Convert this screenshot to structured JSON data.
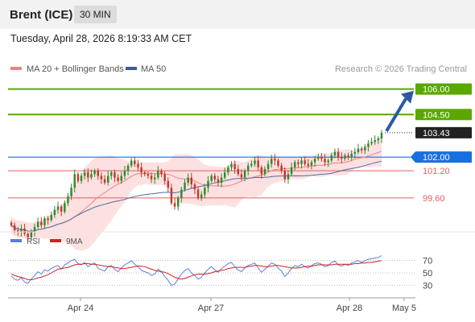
{
  "header": {
    "instrument": "Brent (ICE)",
    "timeframe": "30 MIN",
    "datetime": "Tuesday, April 28, 2026 8:19:33 AM CET"
  },
  "legend": {
    "ma20_bollinger": "MA 20 + Bollinger Bands",
    "ma50": "MA 50",
    "source": "Research © 2026 Trading Central"
  },
  "colors": {
    "candle_up": "#2f8a2f",
    "candle_down": "#c0392b",
    "ma20": "#f08080",
    "ma50": "#4a6fa5",
    "bollinger_fill": "#fde0e0",
    "target_green": "#5aa800",
    "pivot_blue": "#1a6fe0",
    "support_red": "#e06060",
    "rsi": "#5a7fd8",
    "rsi_ma": "#d62020",
    "arrow": "#2a5aa6"
  },
  "levels": [
    {
      "value": "106.00",
      "type": "target"
    },
    {
      "value": "104.50",
      "type": "target"
    },
    {
      "value": "103.43",
      "type": "last"
    },
    {
      "value": "102.00",
      "type": "pivot"
    },
    {
      "value": "101.20",
      "type": "support"
    },
    {
      "value": "99.60",
      "type": "support"
    }
  ],
  "rsi_panel": {
    "rsi_label": "RSI",
    "ma_label": "9MA",
    "ticks": [
      "70",
      "50",
      "30"
    ]
  },
  "x_axis": {
    "labels": [
      "Apr 24",
      "Apr 27",
      "Apr 28",
      "May 5"
    ]
  },
  "chart_data": {
    "type": "candlestick",
    "y_unit": "USD",
    "ylim": [
      97.8,
      106.5
    ],
    "rsi_ylim": [
      20,
      80
    ],
    "close_series": [
      98.0,
      97.7,
      97.6,
      97.8,
      97.5,
      97.3,
      97.6,
      97.9,
      98.2,
      98.0,
      98.4,
      98.3,
      98.6,
      98.9,
      99.1,
      98.8,
      99.3,
      99.7,
      100.2,
      101.0,
      100.6,
      100.9,
      101.1,
      100.8,
      101.0,
      101.2,
      100.9,
      100.7,
      100.5,
      100.9,
      101.1,
      100.8,
      100.6,
      100.9,
      101.2,
      101.5,
      101.8,
      101.6,
      101.4,
      101.1,
      101.0,
      100.9,
      100.7,
      100.8,
      101.2,
      101.0,
      100.6,
      100.2,
      99.3,
      99.1,
      99.6,
      100.1,
      100.5,
      100.8,
      100.4,
      100.1,
      99.6,
      99.8,
      100.2,
      100.6,
      100.9,
      100.7,
      100.5,
      100.8,
      101.1,
      101.4,
      101.6,
      101.3,
      101.0,
      100.8,
      101.2,
      101.5,
      101.6,
      101.8,
      101.4,
      101.0,
      101.3,
      101.6,
      101.9,
      101.8,
      101.5,
      101.2,
      100.7,
      101.0,
      101.4,
      101.7,
      101.6,
      101.8,
      101.6,
      101.5,
      101.7,
      101.9,
      102.0,
      101.9,
      101.7,
      101.8,
      102.1,
      102.3,
      102.0,
      101.9,
      102.1,
      102.0,
      102.2,
      102.3,
      102.5,
      102.4,
      102.6,
      102.8,
      102.9,
      103.0,
      103.1,
      103.43
    ],
    "rsi_series": [
      45,
      40,
      38,
      42,
      35,
      33,
      40,
      46,
      52,
      48,
      55,
      53,
      57,
      60,
      62,
      56,
      63,
      66,
      70,
      72,
      65,
      63,
      67,
      60,
      64,
      66,
      58,
      55,
      53,
      60,
      62,
      56,
      52,
      58,
      63,
      66,
      70,
      64,
      60,
      54,
      52,
      50,
      46,
      48,
      56,
      52,
      44,
      38,
      30,
      32,
      40,
      48,
      54,
      57,
      50,
      46,
      40,
      43,
      50,
      56,
      60,
      55,
      51,
      57,
      61,
      65,
      67,
      60,
      55,
      52,
      58,
      62,
      64,
      66,
      58,
      51,
      56,
      61,
      66,
      64,
      58,
      53,
      44,
      50,
      57,
      62,
      60,
      64,
      60,
      58,
      62,
      65,
      66,
      64,
      60,
      62,
      67,
      69,
      63,
      61,
      64,
      62,
      66,
      68,
      70,
      67,
      70,
      72,
      73,
      74,
      75,
      78
    ],
    "rsi_ma_series": [
      48,
      46,
      44,
      43,
      41,
      39,
      39,
      40,
      42,
      43,
      45,
      47,
      50,
      53,
      56,
      57,
      58,
      59,
      61,
      63,
      64,
      64,
      65,
      65,
      64,
      64,
      63,
      62,
      61,
      60,
      60,
      59,
      58,
      57,
      57,
      58,
      59,
      60,
      61,
      61,
      60,
      58,
      56,
      54,
      53,
      52,
      51,
      49,
      46,
      43,
      41,
      40,
      41,
      43,
      45,
      47,
      48,
      48,
      48,
      49,
      50,
      52,
      53,
      54,
      55,
      57,
      58,
      59,
      59,
      59,
      59,
      60,
      61,
      62,
      62,
      61,
      60,
      60,
      61,
      62,
      62,
      61,
      60,
      59,
      58,
      58,
      58,
      59,
      60,
      61,
      61,
      62,
      63,
      63,
      63,
      63,
      63,
      64,
      64,
      64,
      64,
      64,
      64,
      65,
      65,
      66,
      66,
      67,
      67,
      68,
      69,
      70
    ],
    "levels": [
      106.0,
      104.5,
      103.43,
      102.0,
      101.2,
      99.6
    ]
  }
}
